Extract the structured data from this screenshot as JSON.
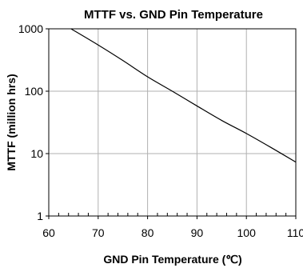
{
  "chart_data": {
    "type": "line",
    "title": "MTTF vs. GND Pin Temperature",
    "xlabel": "GND Pin Temperature (℃)",
    "ylabel": "MTTF (million hrs)",
    "xlim": [
      60,
      110
    ],
    "ylim": [
      1,
      1000
    ],
    "yscale": "log",
    "grid": true,
    "x_ticks": [
      60,
      70,
      80,
      90,
      100,
      110
    ],
    "x_tick_labels": [
      "60",
      "70",
      "80",
      "90",
      "100",
      "110"
    ],
    "x_minor_ticks_per_major": 5,
    "y_ticks": [
      1,
      10,
      100,
      1000
    ],
    "y_tick_labels": [
      "1",
      "10",
      "100",
      "1000"
    ],
    "series": [
      {
        "x": [
          64.5,
          70,
          75,
          80,
          85,
          90,
          95,
          100,
          105,
          110
        ],
        "y": [
          1000,
          550,
          310,
          170,
          100,
          58,
          34,
          21,
          12.5,
          7.3
        ]
      }
    ]
  }
}
